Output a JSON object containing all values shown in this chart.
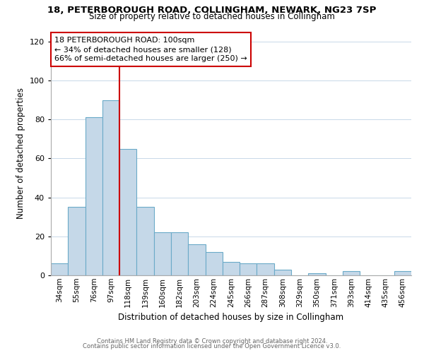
{
  "title1": "18, PETERBOROUGH ROAD, COLLINGHAM, NEWARK, NG23 7SP",
  "title2": "Size of property relative to detached houses in Collingham",
  "xlabel": "Distribution of detached houses by size in Collingham",
  "ylabel": "Number of detached properties",
  "bar_labels": [
    "34sqm",
    "55sqm",
    "76sqm",
    "97sqm",
    "118sqm",
    "139sqm",
    "160sqm",
    "182sqm",
    "203sqm",
    "224sqm",
    "245sqm",
    "266sqm",
    "287sqm",
    "308sqm",
    "329sqm",
    "350sqm",
    "371sqm",
    "393sqm",
    "414sqm",
    "435sqm",
    "456sqm"
  ],
  "bar_values": [
    6,
    35,
    81,
    90,
    65,
    35,
    22,
    22,
    16,
    12,
    7,
    6,
    6,
    3,
    0,
    1,
    0,
    2,
    0,
    0,
    2
  ],
  "bar_color": "#c5d8e8",
  "bar_edge_color": "#6aaac8",
  "vline_color": "#cc0000",
  "annotation_line1": "18 PETERBOROUGH ROAD: 100sqm",
  "annotation_line2": "← 34% of detached houses are smaller (128)",
  "annotation_line3": "66% of semi-detached houses are larger (250) →",
  "annotation_box_edge": "#cc0000",
  "ylim": [
    0,
    125
  ],
  "yticks": [
    0,
    20,
    40,
    60,
    80,
    100,
    120
  ],
  "footer1": "Contains HM Land Registry data © Crown copyright and database right 2024.",
  "footer2": "Contains public sector information licensed under the Open Government Licence v3.0.",
  "bg_color": "#ffffff",
  "grid_color": "#c8d8e8"
}
